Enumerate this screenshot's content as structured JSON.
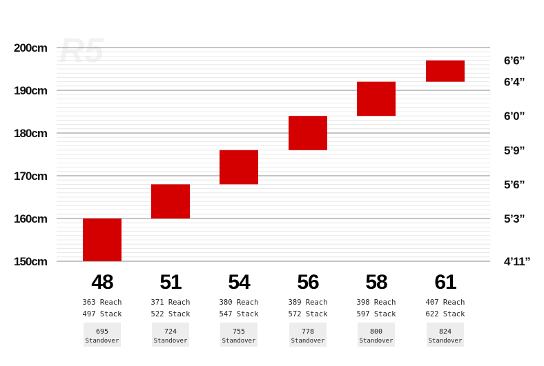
{
  "watermark": "R5",
  "colors": {
    "bar": "#d40000",
    "major_grid": "#8a8a8a",
    "minor_grid": "#e4e4e4",
    "standover_box": "#ededed"
  },
  "chart_data": {
    "type": "bar",
    "orientation": "floating-range",
    "title": "",
    "xlabel": "",
    "ylabel": "",
    "ylim": [
      150,
      200
    ],
    "y_unit": "cm",
    "yticks_left": [
      "150cm",
      "160cm",
      "170cm",
      "180cm",
      "190cm",
      "200cm"
    ],
    "yticks_right": [
      {
        "label": "4’11”",
        "value": 150
      },
      {
        "label": "5’3”",
        "value": 160
      },
      {
        "label": "5’6”",
        "value": 168
      },
      {
        "label": "5’9”",
        "value": 176
      },
      {
        "label": "6’0”",
        "value": 184
      },
      {
        "label": "6’4”",
        "value": 192
      },
      {
        "label": "6’6”",
        "value": 197
      }
    ],
    "grid": true,
    "categories": [
      "48",
      "51",
      "54",
      "56",
      "58",
      "61"
    ],
    "ranges": [
      [
        150,
        160
      ],
      [
        160,
        168
      ],
      [
        168,
        176
      ],
      [
        176,
        184
      ],
      [
        184,
        192
      ],
      [
        192,
        197
      ]
    ],
    "geometry": [
      {
        "reach": "363 Reach",
        "stack": "497 Stack",
        "standover": "695",
        "standover_label": "Standover"
      },
      {
        "reach": "371 Reach",
        "stack": "522 Stack",
        "standover": "724",
        "standover_label": "Standover"
      },
      {
        "reach": "380 Reach",
        "stack": "547 Stack",
        "standover": "755",
        "standover_label": "Standover"
      },
      {
        "reach": "389 Reach",
        "stack": "572 Stack",
        "standover": "778",
        "standover_label": "Standover"
      },
      {
        "reach": "398 Reach",
        "stack": "597 Stack",
        "standover": "800",
        "standover_label": "Standover"
      },
      {
        "reach": "407 Reach",
        "stack": "622 Stack",
        "standover": "824",
        "standover_label": "Standover"
      }
    ]
  }
}
